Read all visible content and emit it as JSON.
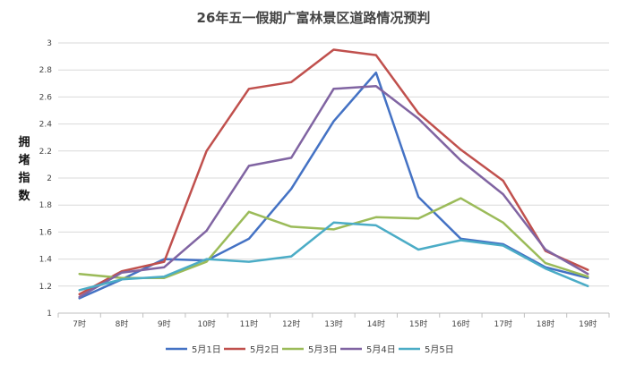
{
  "chart_data": {
    "type": "line",
    "title": "26年五一假期广富林景区道路情况预判",
    "xlabel": "",
    "ylabel": "拥堵指数",
    "categories": [
      "7时",
      "8时",
      "9时",
      "10时",
      "11时",
      "12时",
      "13时",
      "14时",
      "15时",
      "16时",
      "17时",
      "18时",
      "19时"
    ],
    "ylim": [
      1,
      3
    ],
    "yticks": [
      "1",
      "1.2",
      "1.4",
      "1.6",
      "1.8",
      "2",
      "2.2",
      "2.4",
      "2.6",
      "2.8",
      "3"
    ],
    "grid": true,
    "legend_position": "bottom",
    "series": [
      {
        "name": "5月1日",
        "color": "#4472c4",
        "values": [
          1.11,
          1.25,
          1.4,
          1.39,
          1.55,
          1.92,
          2.42,
          2.78,
          1.86,
          1.55,
          1.51,
          1.34,
          1.26
        ]
      },
      {
        "name": "5月2日",
        "color": "#c0504d",
        "values": [
          1.14,
          1.31,
          1.38,
          2.2,
          2.66,
          2.71,
          2.95,
          2.91,
          2.48,
          2.21,
          1.98,
          1.46,
          1.32
        ]
      },
      {
        "name": "5月3日",
        "color": "#9bbb59",
        "values": [
          1.29,
          1.26,
          1.26,
          1.38,
          1.75,
          1.64,
          1.62,
          1.71,
          1.7,
          1.85,
          1.67,
          1.37,
          1.27
        ]
      },
      {
        "name": "5月4日",
        "color": "#8064a2",
        "values": [
          1.12,
          1.3,
          1.34,
          1.61,
          2.09,
          2.15,
          2.66,
          2.68,
          2.44,
          2.13,
          1.88,
          1.47,
          1.29
        ]
      },
      {
        "name": "5月5日",
        "color": "#4bacc6",
        "values": [
          1.17,
          1.25,
          1.27,
          1.4,
          1.38,
          1.42,
          1.67,
          1.65,
          1.47,
          1.54,
          1.5,
          1.33,
          1.2
        ]
      }
    ]
  }
}
